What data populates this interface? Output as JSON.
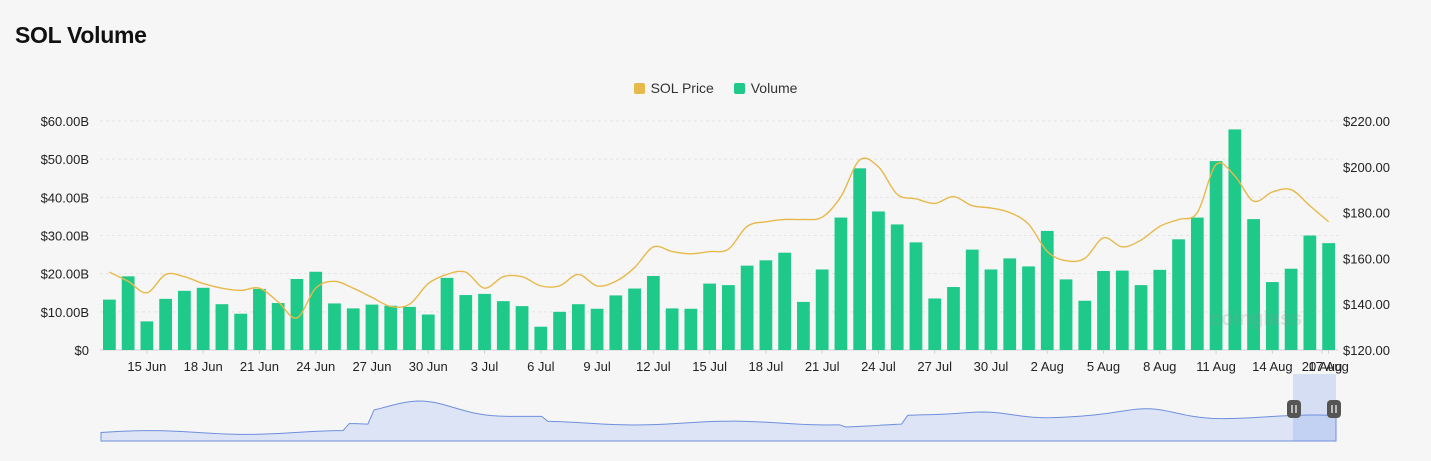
{
  "title": "SOL Volume",
  "watermark": "coinglass",
  "colors": {
    "price": "#e8b94a",
    "volume": "#1ec98a",
    "navigator_line": "#6f8fdc",
    "navigator_fill": "#dde4f6"
  },
  "chart_data": {
    "type": "bar",
    "legend": [
      {
        "name": "SOL Price",
        "color": "#e8b94a"
      },
      {
        "name": "Volume",
        "color": "#1ec98a"
      }
    ],
    "legend_position": "top-center",
    "x_tick_labels": [
      "15 Jun",
      "18 Jun",
      "21 Jun",
      "24 Jun",
      "27 Jun",
      "30 Jun",
      "3 Jul",
      "6 Jul",
      "9 Jul",
      "12 Jul",
      "15 Jul",
      "18 Jul",
      "21 Jul",
      "24 Jul",
      "27 Jul",
      "30 Jul",
      "2 Aug",
      "5 Aug",
      "8 Aug",
      "11 Aug",
      "14 Aug",
      "17 Aug",
      "20 Aug"
    ],
    "y_left_ticks": [
      "$0",
      "$10.00B",
      "$20.00B",
      "$30.00B",
      "$40.00B",
      "$50.00B",
      "$60.00B"
    ],
    "y_left_range": [
      0,
      60
    ],
    "y_right_ticks": [
      "$120.00",
      "$140.00",
      "$160.00",
      "$180.00",
      "$200.00",
      "$220.00"
    ],
    "y_right_range": [
      120,
      220
    ],
    "series": [
      {
        "name": "Volume",
        "kind": "bar",
        "axis": "left",
        "unit": "B USD",
        "values": [
          13.2,
          19.3,
          7.5,
          13.4,
          15.5,
          16.3,
          12.0,
          9.5,
          16.0,
          12.3,
          18.6,
          20.5,
          12.2,
          10.9,
          11.9,
          11.6,
          11.3,
          9.3,
          18.9,
          14.4,
          14.7,
          12.8,
          11.5,
          6.1,
          10.0,
          12.0,
          10.8,
          14.3,
          16.1,
          19.4,
          10.9,
          10.8,
          17.4,
          17.0,
          22.1,
          23.5,
          25.5,
          12.6,
          21.1,
          34.7,
          47.6,
          36.3,
          32.9,
          28.2,
          13.5,
          16.5,
          26.3,
          21.1,
          24.0,
          21.9,
          31.2,
          18.5,
          12.9,
          20.7,
          20.8,
          17.0,
          21.0,
          29.0,
          34.7,
          49.5,
          57.8,
          34.3,
          17.8,
          21.3,
          30.0,
          28.0
        ]
      },
      {
        "name": "SOL Price",
        "kind": "line",
        "axis": "right",
        "unit": "USD",
        "values": [
          154,
          150,
          145,
          153,
          152,
          149,
          147,
          146,
          147,
          141,
          134,
          147,
          150,
          147,
          143,
          139,
          140,
          149,
          153,
          154,
          147,
          152,
          152,
          148,
          148,
          153,
          148,
          150,
          156,
          165,
          163,
          162,
          163,
          164,
          174,
          176,
          177,
          177,
          178,
          187,
          203,
          200,
          188,
          186,
          184,
          187,
          183,
          182,
          180,
          175,
          163,
          159,
          160,
          169,
          165,
          168,
          174,
          177,
          180,
          201,
          196,
          185,
          189,
          190,
          183,
          176
        ]
      }
    ],
    "grid": "horizontal dashed"
  }
}
